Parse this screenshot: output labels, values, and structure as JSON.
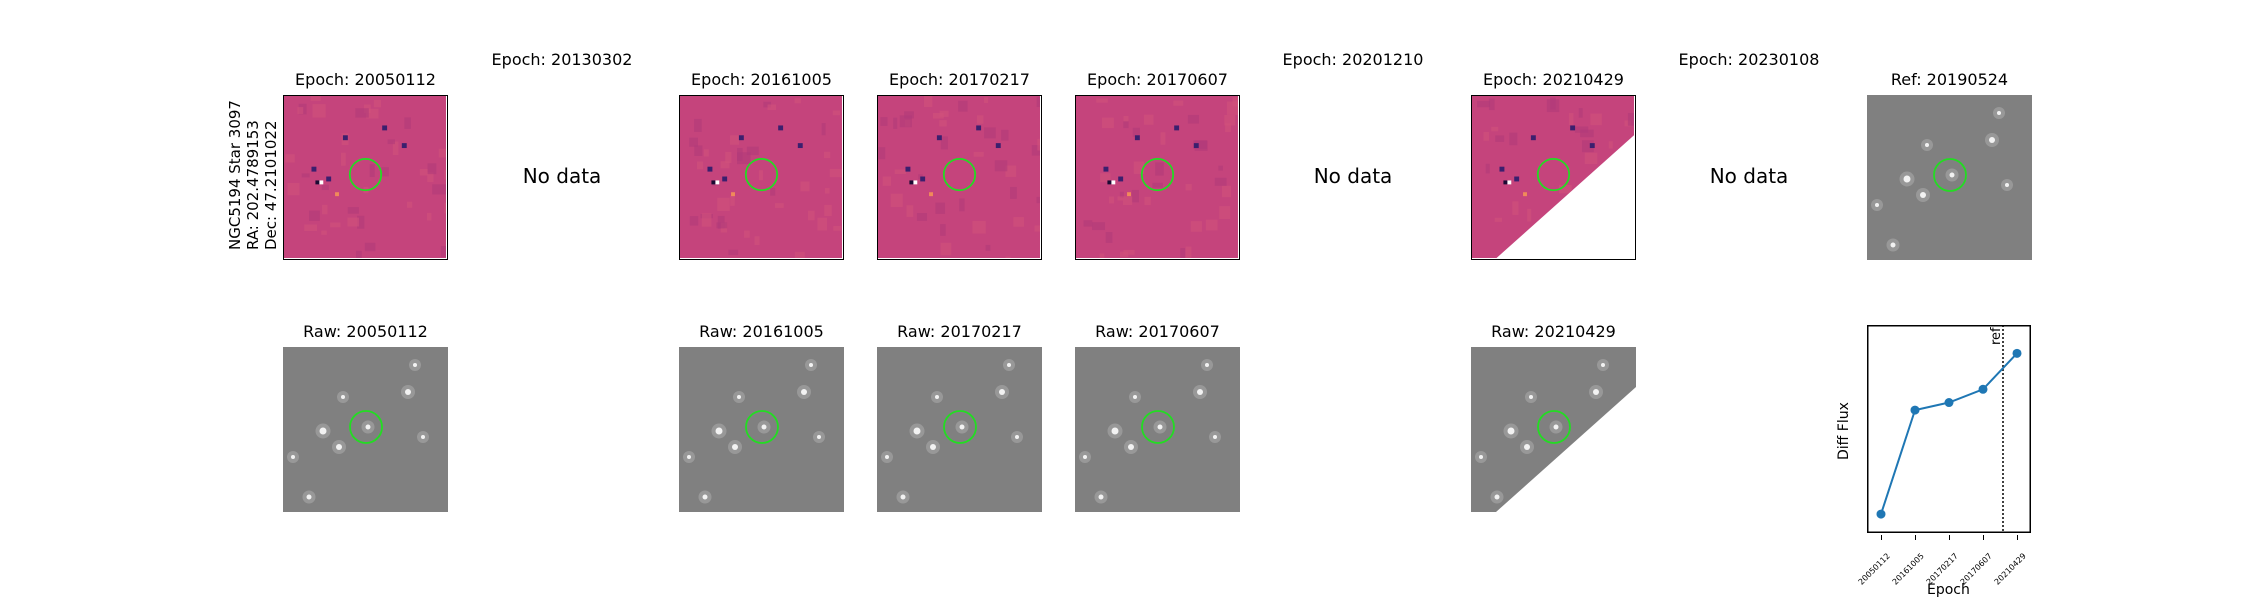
{
  "row_label": {
    "line1": "NGC5194 Star 3097",
    "line2": "RA: 202.4789153",
    "line3": "Dec: 47.2101022"
  },
  "epochs": [
    {
      "title": "Epoch: 20050112",
      "status": "data",
      "raw_title": "Raw: 20050112",
      "partial_coverage": false
    },
    {
      "title": "Epoch: 20130302",
      "status": "No data",
      "raw_title": "",
      "partial_coverage": false
    },
    {
      "title": "Epoch: 20161005",
      "status": "data",
      "raw_title": "Raw: 20161005",
      "partial_coverage": false
    },
    {
      "title": "Epoch: 20170217",
      "status": "data",
      "raw_title": "Raw: 20170217",
      "partial_coverage": false
    },
    {
      "title": "Epoch: 20170607",
      "status": "data",
      "raw_title": "Raw: 20170607",
      "partial_coverage": false
    },
    {
      "title": "Epoch: 20201210",
      "status": "No data",
      "raw_title": "",
      "partial_coverage": false
    },
    {
      "title": "Epoch: 20210429",
      "status": "data",
      "raw_title": "Raw: 20210429",
      "partial_coverage": true
    },
    {
      "title": "Epoch: 20230108",
      "status": "No data",
      "raw_title": "",
      "partial_coverage": false
    }
  ],
  "reference": {
    "title": "Ref: 20190524"
  },
  "colors": {
    "diff_background": "#c5447c",
    "raw_background": "#808080",
    "marker_circle": "#22dd22",
    "series": "#1f77b4"
  },
  "chart_data": {
    "type": "line",
    "title": "",
    "xlabel": "Epoch",
    "ylabel": "Diff Flux",
    "categories": [
      "20050112",
      "20161005",
      "20170217",
      "20170607",
      "20210429"
    ],
    "values": [
      0.0,
      0.55,
      0.59,
      0.66,
      0.85
    ],
    "ylim": [
      -0.1,
      1.0
    ],
    "ref_line": {
      "label": "ref",
      "position": "between 20170607 and 20210429"
    },
    "yticks_shown": false
  }
}
